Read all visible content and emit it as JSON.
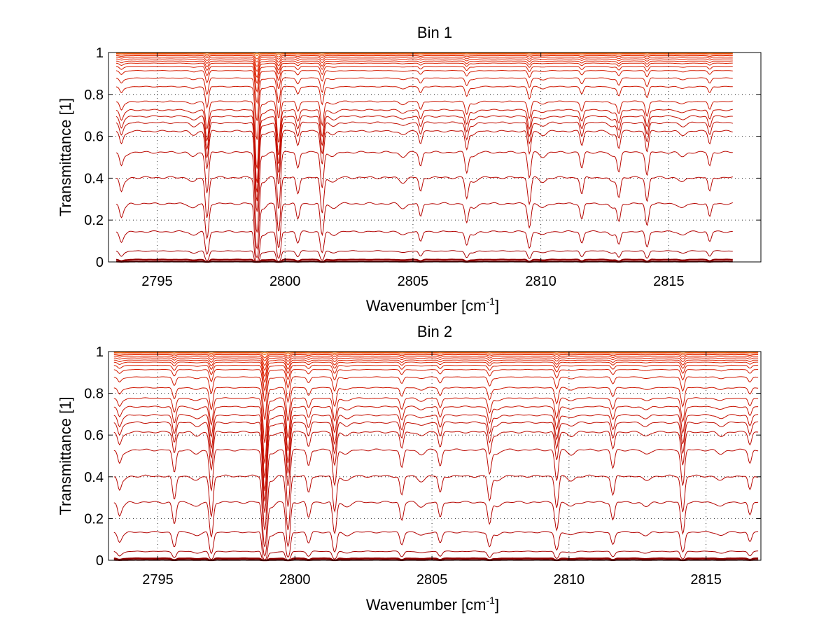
{
  "chart_data": [
    {
      "type": "line",
      "title": "Bin 1",
      "xlabel": "Wavenumber [cm",
      "xlabel_sup": "-1",
      "xlabel_end": "]",
      "ylabel": "Transmittance [1]",
      "xlim": [
        2793.1,
        2818.6
      ],
      "ylim": [
        0,
        1
      ],
      "data_x_range": [
        2793.4,
        2817.5
      ],
      "x_ticks": [
        2795,
        2800,
        2805,
        2810,
        2815
      ],
      "x_tick_labels": [
        "2795",
        "2800",
        "2805",
        "2810",
        "2815"
      ],
      "y_ticks": [
        0,
        0.2,
        0.4,
        0.6,
        0.8,
        1
      ],
      "y_tick_labels": [
        "0",
        "0.2",
        "0.4",
        "0.6",
        "0.8",
        "1"
      ],
      "grid": true,
      "grid_style": "dotted",
      "colors": {
        "high": "#ff8c00",
        "mid": "#e82a00",
        "low": "#b00000",
        "bottom": "#7a0000"
      },
      "series_levels": [
        1.0,
        0.998,
        0.995,
        0.99,
        0.985,
        0.978,
        0.97,
        0.96,
        0.95,
        0.935,
        0.915,
        0.88,
        0.84,
        0.77,
        0.73,
        0.7,
        0.67,
        0.63,
        0.53,
        0.41,
        0.285,
        0.15,
        0.055,
        0.012,
        0.002
      ],
      "absorption_lines": [
        {
          "x": 2793.6,
          "depth": 0.08
        },
        {
          "x": 2796.95,
          "depth": 0.35
        },
        {
          "x": 2798.9,
          "depth": 1.0
        },
        {
          "x": 2799.75,
          "depth": 0.55
        },
        {
          "x": 2800.5,
          "depth": 0.12
        },
        {
          "x": 2801.45,
          "depth": 0.3
        },
        {
          "x": 2805.3,
          "depth": 0.1
        },
        {
          "x": 2807.1,
          "depth": 0.15
        },
        {
          "x": 2809.55,
          "depth": 0.2
        },
        {
          "x": 2811.6,
          "depth": 0.12
        },
        {
          "x": 2813.05,
          "depth": 0.14
        },
        {
          "x": 2814.15,
          "depth": 0.18
        },
        {
          "x": 2816.6,
          "depth": 0.1
        }
      ]
    },
    {
      "type": "line",
      "title": "Bin 2",
      "xlabel": "Wavenumber [cm",
      "xlabel_sup": "-1",
      "xlabel_end": "]",
      "ylabel": "Transmittance [1]",
      "xlim": [
        2793.2,
        2817.0
      ],
      "ylim": [
        0,
        1
      ],
      "data_x_range": [
        2793.4,
        2816.9
      ],
      "x_ticks": [
        2795,
        2800,
        2805,
        2810,
        2815
      ],
      "x_tick_labels": [
        "2795",
        "2800",
        "2805",
        "2810",
        "2815"
      ],
      "y_ticks": [
        0,
        0.2,
        0.4,
        0.6,
        0.8,
        1
      ],
      "y_tick_labels": [
        "0",
        "0.2",
        "0.4",
        "0.6",
        "0.8",
        "1"
      ],
      "grid": true,
      "grid_style": "dotted",
      "colors": {
        "high": "#ff8c00",
        "mid": "#e82a00",
        "low": "#b00000",
        "bottom": "#7a0000"
      },
      "series_levels": [
        1.0,
        0.998,
        0.995,
        0.99,
        0.985,
        0.978,
        0.97,
        0.96,
        0.95,
        0.935,
        0.915,
        0.88,
        0.83,
        0.78,
        0.74,
        0.7,
        0.665,
        0.62,
        0.535,
        0.41,
        0.285,
        0.14,
        0.045,
        0.01,
        0.002
      ],
      "absorption_lines": [
        {
          "x": 2793.6,
          "depth": 0.08
        },
        {
          "x": 2795.6,
          "depth": 0.18
        },
        {
          "x": 2796.95,
          "depth": 0.35
        },
        {
          "x": 2798.9,
          "depth": 1.0
        },
        {
          "x": 2799.75,
          "depth": 0.55
        },
        {
          "x": 2800.5,
          "depth": 0.12
        },
        {
          "x": 2801.45,
          "depth": 0.3
        },
        {
          "x": 2803.9,
          "depth": 0.14
        },
        {
          "x": 2805.3,
          "depth": 0.12
        },
        {
          "x": 2807.1,
          "depth": 0.18
        },
        {
          "x": 2809.55,
          "depth": 0.25
        },
        {
          "x": 2811.6,
          "depth": 0.14
        },
        {
          "x": 2814.15,
          "depth": 0.3
        },
        {
          "x": 2816.6,
          "depth": 0.1
        }
      ]
    }
  ]
}
